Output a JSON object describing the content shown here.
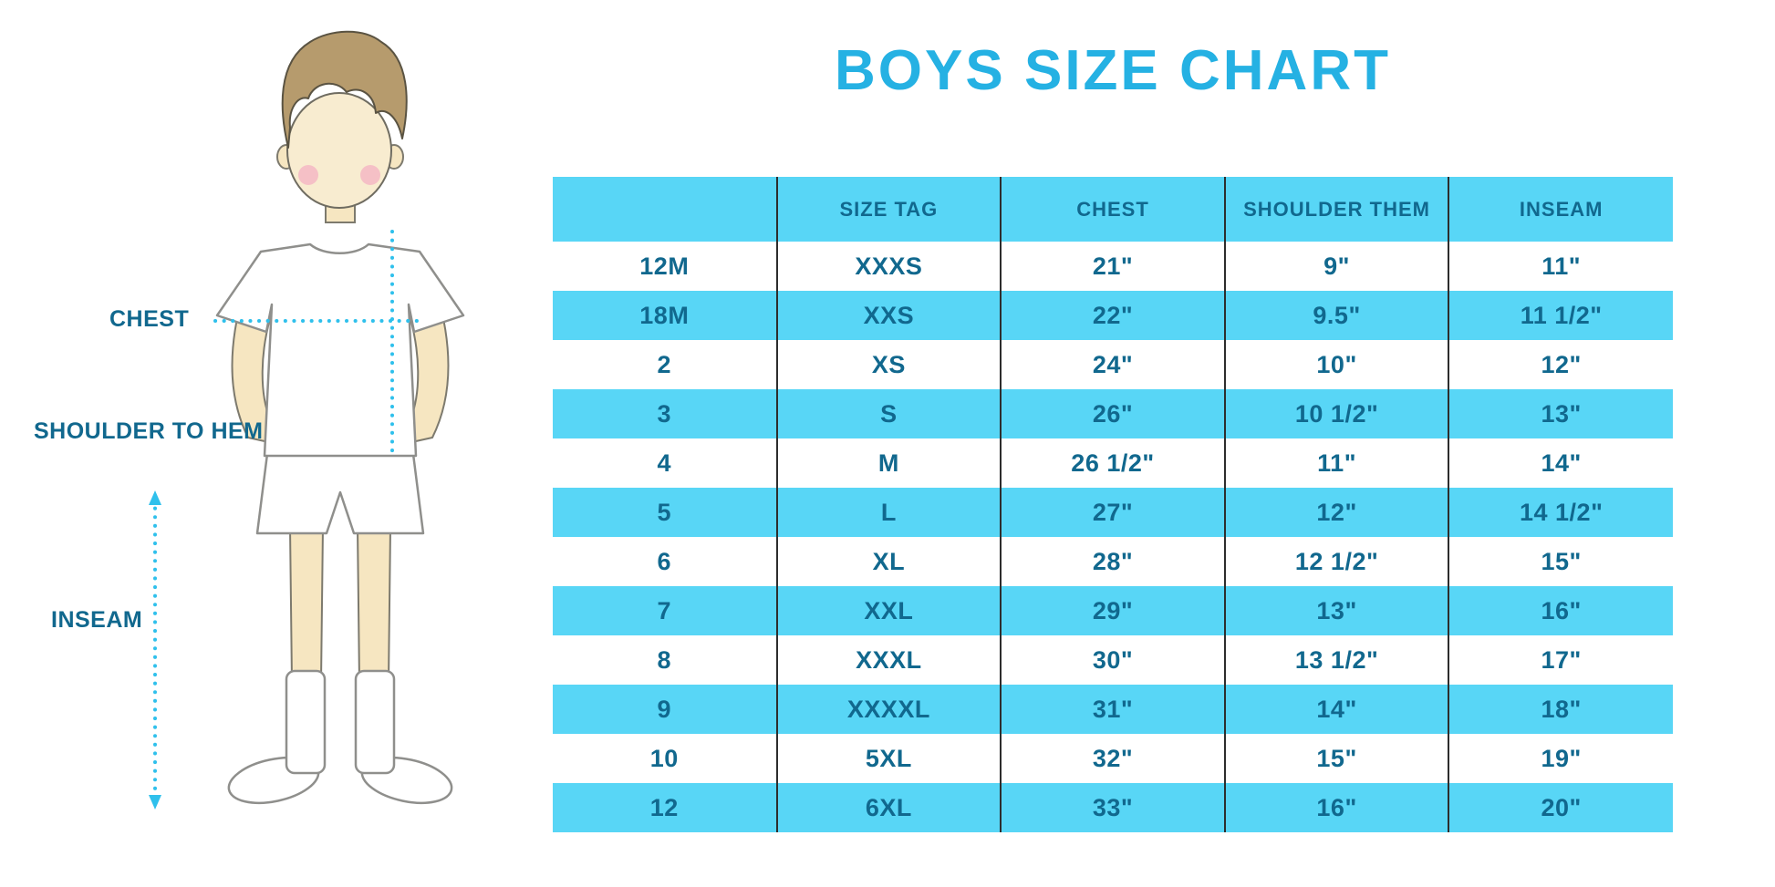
{
  "title": "BOYS SIZE CHART",
  "labels": {
    "chest": "CHEST",
    "shoulder_to_hem": "SHOULDER TO HEM",
    "inseam": "INSEAM"
  },
  "colors": {
    "accent": "#25b1e3",
    "row_fill": "#58d6f6",
    "text_dark": "#11688e",
    "divider": "#2d2d2d",
    "measure_line": "#2fc0ec"
  },
  "chart_data": {
    "type": "table",
    "title": "BOYS SIZE CHART",
    "columns": [
      "",
      "SIZE TAG",
      "CHEST",
      "SHOULDER THEM",
      "INSEAM"
    ],
    "rows": [
      [
        "12M",
        "XXXS",
        "21\"",
        "9\"",
        "11\""
      ],
      [
        "18M",
        "XXS",
        "22\"",
        "9.5\"",
        "11 1/2\""
      ],
      [
        "2",
        "XS",
        "24\"",
        "10\"",
        "12\""
      ],
      [
        "3",
        "S",
        "26\"",
        "10 1/2\"",
        "13\""
      ],
      [
        "4",
        "M",
        "26 1/2\"",
        "11\"",
        "14\""
      ],
      [
        "5",
        "L",
        "27\"",
        "12\"",
        "14 1/2\""
      ],
      [
        "6",
        "XL",
        "28\"",
        "12 1/2\"",
        "15\""
      ],
      [
        "7",
        "XXL",
        "29\"",
        "13\"",
        "16\""
      ],
      [
        "8",
        "XXXL",
        "30\"",
        "13 1/2\"",
        "17\""
      ],
      [
        "9",
        "XXXXL",
        "31\"",
        "14\"",
        "18\""
      ],
      [
        "10",
        "5XL",
        "32\"",
        "15\"",
        "19\""
      ],
      [
        "12",
        "6XL",
        "33\"",
        "16\"",
        "20\""
      ]
    ]
  }
}
